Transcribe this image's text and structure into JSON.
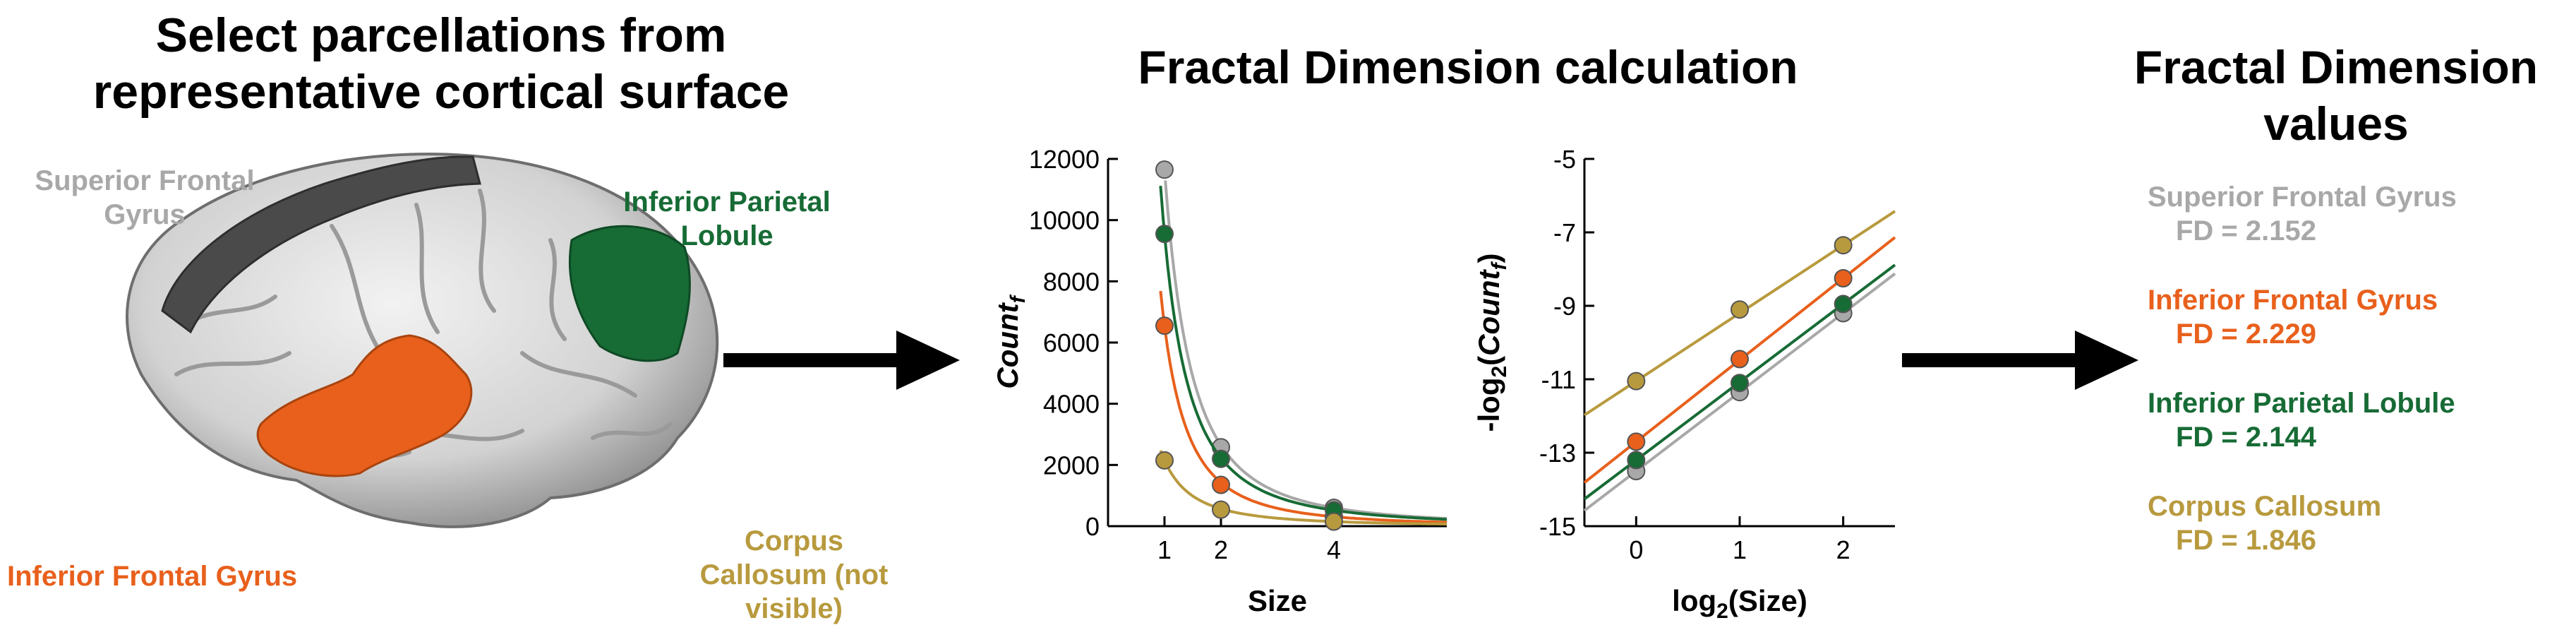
{
  "colors": {
    "sfg": "#a8a8a8",
    "ifg": "#e8601c",
    "ipl": "#176b35",
    "cc": "#b89a3e",
    "axis": "#000000"
  },
  "left": {
    "title": "Select parcellations from representative cortical surface",
    "labels": {
      "sfg": "Superior Frontal Gyrus",
      "ipl": "Inferior Parietal Lobule",
      "ifg": "Inferior Frontal Gyrus",
      "cc": "Corpus Callosum (not visible)"
    }
  },
  "middle": {
    "title": "Fractal Dimension calculation"
  },
  "right": {
    "title": "Fractal Dimension values",
    "entries": [
      {
        "name": "Superior Frontal Gyrus",
        "value": "FD = 2.152"
      },
      {
        "name": "Inferior Frontal Gyrus",
        "value": "FD = 2.229"
      },
      {
        "name": "Inferior Parietal Lobule",
        "value": "FD = 2.144"
      },
      {
        "name": "Corpus Callosum",
        "value": "FD = 1.846"
      }
    ]
  },
  "chart_data": [
    {
      "type": "scatter",
      "xlabel": "Size",
      "ylabel": "Count_f",
      "xticks": [
        "1",
        "2",
        "4"
      ],
      "yticks": [
        "0",
        "2000",
        "4000",
        "6000",
        "8000",
        "10000",
        "12000"
      ],
      "xlim": [
        0,
        6
      ],
      "ylim": [
        0,
        12000
      ],
      "x": [
        1,
        2,
        4
      ],
      "series": [
        {
          "key": "sfg",
          "color": "#a8a8a8",
          "values": [
            11650,
            2580,
            600
          ]
        },
        {
          "key": "ifg",
          "color": "#e8601c",
          "values": [
            6550,
            1350,
            310
          ]
        },
        {
          "key": "ipl",
          "color": "#176b35",
          "values": [
            9550,
            2200,
            520
          ]
        },
        {
          "key": "cc",
          "color": "#b89a3e",
          "values": [
            2150,
            540,
            150
          ]
        }
      ]
    },
    {
      "type": "scatter",
      "xlabel": "log2(Size)",
      "ylabel": "-log2(Count_f)",
      "xticks": [
        "0",
        "1",
        "2"
      ],
      "yticks": [
        "-5",
        "-7",
        "-9",
        "-11",
        "-13",
        "-15"
      ],
      "xlim": [
        -0.5,
        2.5
      ],
      "ylim": [
        -15,
        -5
      ],
      "x": [
        0,
        1,
        2
      ],
      "series": [
        {
          "key": "sfg",
          "color": "#a8a8a8",
          "values": [
            -13.5,
            -11.35,
            -9.2
          ]
        },
        {
          "key": "ifg",
          "color": "#e8601c",
          "values": [
            -12.7,
            -10.45,
            -8.25
          ]
        },
        {
          "key": "ipl",
          "color": "#176b35",
          "values": [
            -13.2,
            -11.1,
            -8.95
          ]
        },
        {
          "key": "cc",
          "color": "#b89a3e",
          "values": [
            -11.05,
            -9.1,
            -7.35
          ]
        }
      ]
    }
  ]
}
